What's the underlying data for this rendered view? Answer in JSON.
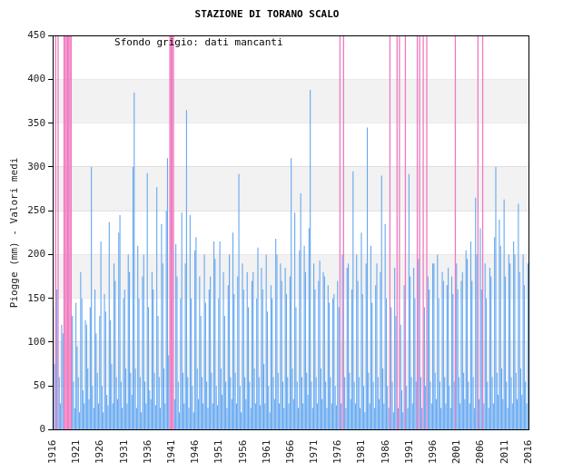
{
  "chart_data": {
    "type": "bar",
    "title": "STAZIONE DI TORANO SCALO",
    "y_label": "Piogge (mm) - Valori medi",
    "annotation": "Sfondo grigio: dati mancanti",
    "color": "#66a8f0",
    "grid": true,
    "xlim": [
      1916,
      2016
    ],
    "xticks": [
      1916,
      1921,
      1926,
      1931,
      1936,
      1941,
      1946,
      1951,
      1956,
      1961,
      1966,
      1971,
      1976,
      1981,
      1986,
      1991,
      1996,
      2001,
      2006,
      2011,
      2016
    ],
    "ylim": [
      0,
      450
    ],
    "yticks": [
      0,
      50,
      100,
      150,
      200,
      250,
      300,
      350,
      400,
      450
    ],
    "x": [
      1916.125,
      1916.375,
      1916.625,
      1916.875,
      1917.125,
      1917.375,
      1917.625,
      1917.875,
      1918.125,
      1918.375,
      1918.625,
      1918.875,
      1919.125,
      1919.375,
      1919.625,
      1919.875,
      1920.125,
      1920.375,
      1920.625,
      1920.875,
      1921.125,
      1921.375,
      1921.625,
      1921.875,
      1922.125,
      1922.375,
      1922.625,
      1922.875,
      1923.125,
      1923.375,
      1923.625,
      1923.875,
      1924.125,
      1924.375,
      1924.625,
      1924.875,
      1925.125,
      1925.375,
      1925.625,
      1925.875,
      1926.125,
      1926.375,
      1926.625,
      1926.875,
      1927.125,
      1927.375,
      1927.625,
      1927.875,
      1928.125,
      1928.375,
      1928.625,
      1928.875,
      1929.125,
      1929.375,
      1929.625,
      1929.875,
      1930.125,
      1930.375,
      1930.625,
      1930.875,
      1931.125,
      1931.375,
      1931.625,
      1931.875,
      1932.125,
      1932.375,
      1932.625,
      1932.875,
      1933.125,
      1933.375,
      1933.625,
      1933.875,
      1934.125,
      1934.375,
      1934.625,
      1934.875,
      1935.125,
      1935.375,
      1935.625,
      1935.875,
      1936.125,
      1936.375,
      1936.625,
      1936.875,
      1937.125,
      1937.375,
      1937.625,
      1937.875,
      1938.125,
      1938.375,
      1938.625,
      1938.875,
      1939.125,
      1939.375,
      1939.625,
      1939.875,
      1940.125,
      1940.375,
      1940.625,
      1940.875,
      1941.125,
      1941.375,
      1941.625,
      1941.875,
      1942.125,
      1942.375,
      1942.625,
      1942.875,
      1943.125,
      1943.375,
      1943.625,
      1943.875,
      1944.125,
      1944.375,
      1944.625,
      1944.875,
      1945.125,
      1945.375,
      1945.625,
      1945.875,
      1946.125,
      1946.375,
      1946.625,
      1946.875,
      1947.125,
      1947.375,
      1947.625,
      1947.875,
      1948.125,
      1948.375,
      1948.625,
      1948.875,
      1949.125,
      1949.375,
      1949.625,
      1949.875,
      1950.125,
      1950.375,
      1950.625,
      1950.875,
      1951.125,
      1951.375,
      1951.625,
      1951.875,
      1952.125,
      1952.375,
      1952.625,
      1952.875,
      1953.125,
      1953.375,
      1953.625,
      1953.875,
      1954.125,
      1954.375,
      1954.625,
      1954.875,
      1955.125,
      1955.375,
      1955.625,
      1955.875,
      1956.125,
      1956.375,
      1956.625,
      1956.875,
      1957.125,
      1957.375,
      1957.625,
      1957.875,
      1958.125,
      1958.375,
      1958.625,
      1958.875,
      1959.125,
      1959.375,
      1959.625,
      1959.875,
      1960.125,
      1960.375,
      1960.625,
      1960.875,
      1961.125,
      1961.375,
      1961.625,
      1961.875,
      1962.125,
      1962.375,
      1962.625,
      1962.875,
      1963.125,
      1963.375,
      1963.625,
      1963.875,
      1964.125,
      1964.375,
      1964.625,
      1964.875,
      1965.125,
      1965.375,
      1965.625,
      1965.875,
      1966.125,
      1966.375,
      1966.625,
      1966.875,
      1967.125,
      1967.375,
      1967.625,
      1967.875,
      1968.125,
      1968.375,
      1968.625,
      1968.875,
      1969.125,
      1969.375,
      1969.625,
      1969.875,
      1970.125,
      1970.375,
      1970.625,
      1970.875,
      1971.125,
      1971.375,
      1971.625,
      1971.875,
      1972.125,
      1972.375,
      1972.625,
      1972.875,
      1973.125,
      1973.375,
      1973.625,
      1973.875,
      1974.125,
      1974.375,
      1974.625,
      1974.875,
      1975.125,
      1975.375,
      1975.625,
      1975.875,
      1976.125,
      1976.375,
      1976.625,
      1976.875,
      1977.125,
      1977.375,
      1977.625,
      1977.875,
      1978.125,
      1978.375,
      1978.625,
      1978.875,
      1979.125,
      1979.375,
      1979.625,
      1979.875,
      1980.125,
      1980.375,
      1980.625,
      1980.875,
      1981.125,
      1981.375,
      1981.625,
      1981.875,
      1982.125,
      1982.375,
      1982.625,
      1982.875,
      1983.125,
      1983.375,
      1983.625,
      1983.875,
      1984.125,
      1984.375,
      1984.625,
      1984.875,
      1985.125,
      1985.375,
      1985.625,
      1985.875,
      1986.125,
      1986.375,
      1986.625,
      1986.875,
      1987.125,
      1987.375,
      1987.625,
      1987.875,
      1988.125,
      1988.375,
      1988.625,
      1988.875,
      1989.125,
      1989.375,
      1989.625,
      1989.875,
      1990.125,
      1990.375,
      1990.625,
      1990.875,
      1991.125,
      1991.375,
      1991.625,
      1991.875,
      1992.125,
      1992.375,
      1992.625,
      1992.875,
      1993.125,
      1993.375,
      1993.625,
      1993.875,
      1994.125,
      1994.375,
      1994.625,
      1994.875,
      1995.125,
      1995.375,
      1995.625,
      1995.875,
      1996.125,
      1996.375,
      1996.625,
      1996.875,
      1997.125,
      1997.375,
      1997.625,
      1997.875,
      1998.125,
      1998.375,
      1998.625,
      1998.875,
      1999.125,
      1999.375,
      1999.625,
      1999.875,
      2000.125,
      2000.375,
      2000.625,
      2000.875,
      2001.125,
      2001.375,
      2001.625,
      2001.875,
      2002.125,
      2002.375,
      2002.625,
      2002.875,
      2003.125,
      2003.375,
      2003.625,
      2003.875,
      2004.125,
      2004.375,
      2004.625,
      2004.875,
      2005.125,
      2005.375,
      2005.625,
      2005.875,
      2006.125,
      2006.375,
      2006.625,
      2006.875,
      2007.125,
      2007.375,
      2007.625,
      2007.875,
      2008.125,
      2008.375,
      2008.625,
      2008.875,
      2009.125,
      2009.375,
      2009.625,
      2009.875,
      2010.125,
      2010.375,
      2010.625,
      2010.875,
      2011.125,
      2011.375,
      2011.625,
      2011.875,
      2012.125,
      2012.375,
      2012.625,
      2012.875,
      2013.125,
      2013.375,
      2013.625,
      2013.875,
      2014.125,
      2014.375,
      2014.625,
      2014.875,
      2015.125,
      2015.375,
      2015.625,
      2015.875
    ],
    "values": [
      140,
      75,
      null,
      160,
      null,
      60,
      30,
      120,
      110,
      null,
      null,
      null,
      null,
      null,
      null,
      null,
      130,
      55,
      25,
      145,
      95,
      60,
      20,
      180,
      150,
      45,
      30,
      125,
      120,
      70,
      35,
      140,
      300,
      50,
      25,
      160,
      110,
      65,
      30,
      130,
      215,
      50,
      20,
      155,
      135,
      40,
      28,
      237,
      125,
      75,
      30,
      190,
      170,
      60,
      35,
      225,
      245,
      55,
      25,
      150,
      160,
      70,
      30,
      200,
      180,
      65,
      40,
      300,
      385,
      70,
      25,
      210,
      150,
      60,
      20,
      175,
      200,
      55,
      30,
      293,
      140,
      45,
      35,
      180,
      160,
      65,
      28,
      277,
      130,
      60,
      25,
      235,
      190,
      70,
      30,
      250,
      310,
      85,
      null,
      null,
      null,
      null,
      35,
      212,
      175,
      55,
      20,
      150,
      248,
      65,
      30,
      190,
      365,
      60,
      25,
      245,
      150,
      50,
      20,
      205,
      220,
      70,
      35,
      175,
      130,
      60,
      30,
      200,
      145,
      55,
      25,
      160,
      175,
      65,
      30,
      215,
      195,
      50,
      28,
      150,
      215,
      70,
      40,
      180,
      130,
      55,
      25,
      165,
      200,
      60,
      35,
      225,
      155,
      65,
      30,
      175,
      292,
      50,
      20,
      190,
      160,
      60,
      35,
      180,
      140,
      55,
      25,
      170,
      180,
      70,
      30,
      150,
      208,
      60,
      28,
      185,
      160,
      75,
      30,
      200,
      135,
      50,
      20,
      165,
      150,
      60,
      35,
      218,
      200,
      65,
      30,
      190,
      170,
      55,
      25,
      185,
      155,
      60,
      30,
      175,
      310,
      70,
      35,
      248,
      140,
      55,
      25,
      205,
      270,
      60,
      30,
      210,
      180,
      65,
      40,
      230,
      388,
      55,
      25,
      190,
      160,
      60,
      30,
      170,
      193,
      70,
      35,
      180,
      175,
      55,
      25,
      165,
      145,
      60,
      30,
      150,
      155,
      50,
      28,
      170,
      140,
      null,
      30,
      200,
      null,
      60,
      25,
      185,
      190,
      65,
      35,
      160,
      295,
      55,
      30,
      200,
      170,
      60,
      25,
      225,
      155,
      50,
      20,
      190,
      345,
      65,
      30,
      210,
      145,
      55,
      25,
      165,
      190,
      60,
      35,
      180,
      290,
      70,
      30,
      235,
      150,
      50,
      25,
      null,
      140,
      55,
      20,
      185,
      130,
      null,
      25,
      null,
      120,
      45,
      20,
      165,
      null,
      50,
      25,
      292,
      175,
      60,
      30,
      185,
      150,
      55,
      null,
      195,
      null,
      60,
      25,
      null,
      140,
      50,
      null,
      175,
      160,
      55,
      30,
      190,
      190,
      65,
      35,
      200,
      150,
      55,
      25,
      180,
      170,
      60,
      30,
      165,
      185,
      50,
      25,
      175,
      155,
      55,
      null,
      190,
      160,
      60,
      30,
      170,
      180,
      65,
      35,
      205,
      195,
      55,
      30,
      215,
      170,
      60,
      25,
      265,
      200,
      null,
      35,
      230,
      160,
      null,
      30,
      190,
      150,
      55,
      25,
      185,
      175,
      60,
      30,
      220,
      300,
      65,
      40,
      240,
      210,
      70,
      35,
      263,
      175,
      55,
      25,
      200,
      190,
      60,
      30,
      215,
      200,
      65,
      35,
      258,
      180,
      70,
      40,
      200,
      165,
      55,
      30,
      190
    ]
  }
}
